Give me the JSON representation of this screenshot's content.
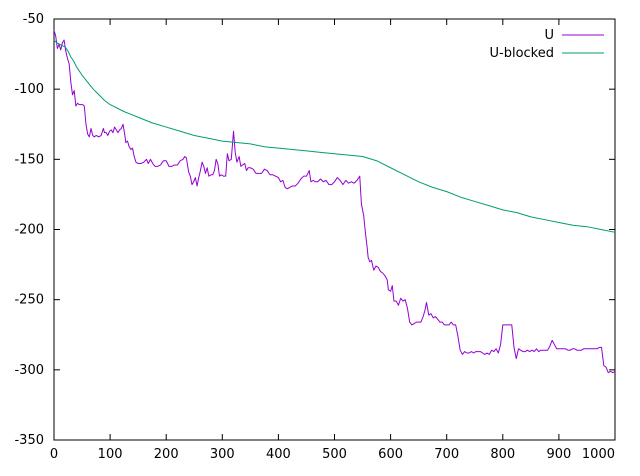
{
  "chart_data": {
    "type": "line",
    "title": "",
    "xlabel": "",
    "ylabel": "",
    "xlim": [
      0,
      1000
    ],
    "ylim": [
      -350,
      -50
    ],
    "x_ticks": [
      0,
      100,
      200,
      300,
      400,
      500,
      600,
      700,
      800,
      900,
      1000
    ],
    "y_ticks": [
      -50,
      -100,
      -150,
      -200,
      -250,
      -300,
      -350
    ],
    "grid": false,
    "legend_position": "top-right",
    "series": [
      {
        "name": "U",
        "color": "#9400d3",
        "points": [
          [
            0,
            -58
          ],
          [
            3,
            -62
          ],
          [
            6,
            -71
          ],
          [
            9,
            -68
          ],
          [
            12,
            -72
          ],
          [
            15,
            -67
          ],
          [
            18,
            -65
          ],
          [
            21,
            -73
          ],
          [
            24,
            -78
          ],
          [
            27,
            -82
          ],
          [
            30,
            -95
          ],
          [
            33,
            -104
          ],
          [
            36,
            -101
          ],
          [
            39,
            -112
          ],
          [
            42,
            -110
          ],
          [
            45,
            -111
          ],
          [
            48,
            -111
          ],
          [
            51,
            -111
          ],
          [
            54,
            -112
          ],
          [
            57,
            -125
          ],
          [
            60,
            -132
          ],
          [
            63,
            -134
          ],
          [
            66,
            -128
          ],
          [
            69,
            -133
          ],
          [
            72,
            -134
          ],
          [
            75,
            -133
          ],
          [
            80,
            -134
          ],
          [
            84,
            -133
          ],
          [
            88,
            -128
          ],
          [
            90,
            -131
          ],
          [
            93,
            -131
          ],
          [
            96,
            -133
          ],
          [
            99,
            -130
          ],
          [
            102,
            -129
          ],
          [
            105,
            -131
          ],
          [
            108,
            -127
          ],
          [
            111,
            -129
          ],
          [
            114,
            -131
          ],
          [
            117,
            -129
          ],
          [
            120,
            -128
          ],
          [
            123,
            -125
          ],
          [
            126,
            -132
          ],
          [
            128,
            -138
          ],
          [
            131,
            -137
          ],
          [
            134,
            -141
          ],
          [
            137,
            -143
          ],
          [
            140,
            -142
          ],
          [
            143,
            -148
          ],
          [
            146,
            -152
          ],
          [
            150,
            -153
          ],
          [
            155,
            -153
          ],
          [
            160,
            -152
          ],
          [
            165,
            -150
          ],
          [
            168,
            -153
          ],
          [
            172,
            -150
          ],
          [
            176,
            -153
          ],
          [
            180,
            -155
          ],
          [
            185,
            -155
          ],
          [
            190,
            -154
          ],
          [
            195,
            -151
          ],
          [
            200,
            -151
          ],
          [
            205,
            -155
          ],
          [
            210,
            -155
          ],
          [
            215,
            -154
          ],
          [
            220,
            -154
          ],
          [
            225,
            -151
          ],
          [
            230,
            -150
          ],
          [
            233,
            -148
          ],
          [
            236,
            -149
          ],
          [
            240,
            -159
          ],
          [
            243,
            -162
          ],
          [
            246,
            -168
          ],
          [
            249,
            -166
          ],
          [
            252,
            -163
          ],
          [
            255,
            -169
          ],
          [
            258,
            -163
          ],
          [
            261,
            -158
          ],
          [
            264,
            -152
          ],
          [
            267,
            -155
          ],
          [
            270,
            -160
          ],
          [
            273,
            -156
          ],
          [
            276,
            -162
          ],
          [
            280,
            -161
          ],
          [
            283,
            -161
          ],
          [
            286,
            -158
          ],
          [
            289,
            -150
          ],
          [
            292,
            -153
          ],
          [
            295,
            -162
          ],
          [
            298,
            -161
          ],
          [
            302,
            -162
          ],
          [
            306,
            -162
          ],
          [
            309,
            -146
          ],
          [
            312,
            -151
          ],
          [
            316,
            -150
          ],
          [
            320,
            -130
          ],
          [
            323,
            -145
          ],
          [
            326,
            -152
          ],
          [
            330,
            -148
          ],
          [
            333,
            -155
          ],
          [
            336,
            -154
          ],
          [
            340,
            -153
          ],
          [
            343,
            -158
          ],
          [
            346,
            -156
          ],
          [
            350,
            -156
          ],
          [
            355,
            -157
          ],
          [
            360,
            -160
          ],
          [
            365,
            -160
          ],
          [
            370,
            -160
          ],
          [
            375,
            -157
          ],
          [
            380,
            -158
          ],
          [
            385,
            -161
          ],
          [
            390,
            -161
          ],
          [
            395,
            -162
          ],
          [
            400,
            -163
          ],
          [
            404,
            -166
          ],
          [
            408,
            -165
          ],
          [
            412,
            -170
          ],
          [
            416,
            -171
          ],
          [
            420,
            -170
          ],
          [
            425,
            -169
          ],
          [
            430,
            -169
          ],
          [
            435,
            -167
          ],
          [
            440,
            -164
          ],
          [
            445,
            -162
          ],
          [
            450,
            -162
          ],
          [
            455,
            -158
          ],
          [
            458,
            -166
          ],
          [
            462,
            -165
          ],
          [
            466,
            -166
          ],
          [
            470,
            -166
          ],
          [
            475,
            -164
          ],
          [
            480,
            -166
          ],
          [
            485,
            -165
          ],
          [
            490,
            -168
          ],
          [
            495,
            -168
          ],
          [
            500,
            -166
          ],
          [
            505,
            -163
          ],
          [
            510,
            -165
          ],
          [
            515,
            -168
          ],
          [
            520,
            -165
          ],
          [
            525,
            -167
          ],
          [
            530,
            -166
          ],
          [
            535,
            -167
          ],
          [
            540,
            -165
          ],
          [
            545,
            -162
          ],
          [
            548,
            -182
          ],
          [
            552,
            -190
          ],
          [
            555,
            -202
          ],
          [
            558,
            -212
          ],
          [
            560,
            -220
          ],
          [
            563,
            -223
          ],
          [
            566,
            -222
          ],
          [
            570,
            -229
          ],
          [
            574,
            -226
          ],
          [
            578,
            -227
          ],
          [
            582,
            -230
          ],
          [
            586,
            -231
          ],
          [
            590,
            -233
          ],
          [
            594,
            -236
          ],
          [
            596,
            -243
          ],
          [
            600,
            -244
          ],
          [
            603,
            -240
          ],
          [
            606,
            -251
          ],
          [
            610,
            -251
          ],
          [
            614,
            -254
          ],
          [
            618,
            -249
          ],
          [
            622,
            -251
          ],
          [
            626,
            -250
          ],
          [
            630,
            -256
          ],
          [
            634,
            -266
          ],
          [
            638,
            -268
          ],
          [
            642,
            -267
          ],
          [
            646,
            -266
          ],
          [
            650,
            -266
          ],
          [
            654,
            -266
          ],
          [
            658,
            -262
          ],
          [
            661,
            -258
          ],
          [
            664,
            -252
          ],
          [
            668,
            -261
          ],
          [
            672,
            -260
          ],
          [
            676,
            -263
          ],
          [
            680,
            -262
          ],
          [
            684,
            -264
          ],
          [
            688,
            -266
          ],
          [
            692,
            -266
          ],
          [
            696,
            -268
          ],
          [
            700,
            -268
          ],
          [
            704,
            -268
          ],
          [
            708,
            -266
          ],
          [
            712,
            -268
          ],
          [
            716,
            -268
          ],
          [
            720,
            -276
          ],
          [
            724,
            -286
          ],
          [
            728,
            -289
          ],
          [
            732,
            -287
          ],
          [
            736,
            -288
          ],
          [
            740,
            -288
          ],
          [
            744,
            -287
          ],
          [
            748,
            -288
          ],
          [
            752,
            -287
          ],
          [
            756,
            -287
          ],
          [
            760,
            -287
          ],
          [
            764,
            -288
          ],
          [
            768,
            -289
          ],
          [
            772,
            -288
          ],
          [
            776,
            -289
          ],
          [
            780,
            -286
          ],
          [
            784,
            -287
          ],
          [
            788,
            -285
          ],
          [
            792,
            -288
          ],
          [
            796,
            -282
          ],
          [
            800,
            -268
          ],
          [
            804,
            -268
          ],
          [
            808,
            -268
          ],
          [
            812,
            -268
          ],
          [
            816,
            -268
          ],
          [
            820,
            -284
          ],
          [
            824,
            -292
          ],
          [
            828,
            -285
          ],
          [
            832,
            -286
          ],
          [
            836,
            -287
          ],
          [
            840,
            -287
          ],
          [
            844,
            -286
          ],
          [
            848,
            -287
          ],
          [
            852,
            -286
          ],
          [
            856,
            -287
          ],
          [
            860,
            -285
          ],
          [
            864,
            -287
          ],
          [
            868,
            -286
          ],
          [
            872,
            -286
          ],
          [
            876,
            -286
          ],
          [
            880,
            -286
          ],
          [
            884,
            -283
          ],
          [
            888,
            -279
          ],
          [
            892,
            -282
          ],
          [
            896,
            -285
          ],
          [
            900,
            -285
          ],
          [
            904,
            -285
          ],
          [
            908,
            -285
          ],
          [
            912,
            -285
          ],
          [
            916,
            -286
          ],
          [
            920,
            -286
          ],
          [
            924,
            -285
          ],
          [
            928,
            -285
          ],
          [
            932,
            -286
          ],
          [
            936,
            -286
          ],
          [
            940,
            -286
          ],
          [
            944,
            -285
          ],
          [
            948,
            -285
          ],
          [
            952,
            -285
          ],
          [
            956,
            -285
          ],
          [
            960,
            -285
          ],
          [
            964,
            -285
          ],
          [
            968,
            -285
          ],
          [
            972,
            -284
          ],
          [
            976,
            -284
          ],
          [
            980,
            -297
          ],
          [
            984,
            -298
          ],
          [
            988,
            -302
          ],
          [
            992,
            -301
          ],
          [
            996,
            -302
          ],
          [
            1000,
            -301
          ]
        ]
      },
      {
        "name": "U-blocked",
        "color": "#009e73",
        "points": [
          [
            0,
            -65
          ],
          [
            5,
            -67
          ],
          [
            10,
            -68
          ],
          [
            15,
            -69
          ],
          [
            20,
            -70
          ],
          [
            25,
            -73
          ],
          [
            30,
            -77
          ],
          [
            35,
            -80
          ],
          [
            40,
            -84
          ],
          [
            45,
            -87
          ],
          [
            50,
            -90
          ],
          [
            60,
            -95
          ],
          [
            70,
            -100
          ],
          [
            80,
            -104
          ],
          [
            90,
            -108
          ],
          [
            100,
            -111
          ],
          [
            125,
            -116
          ],
          [
            150,
            -120
          ],
          [
            175,
            -124
          ],
          [
            200,
            -127
          ],
          [
            225,
            -130
          ],
          [
            250,
            -133
          ],
          [
            275,
            -135
          ],
          [
            300,
            -137
          ],
          [
            325,
            -138
          ],
          [
            350,
            -139
          ],
          [
            375,
            -141
          ],
          [
            400,
            -142
          ],
          [
            425,
            -143
          ],
          [
            450,
            -144
          ],
          [
            475,
            -145
          ],
          [
            500,
            -146
          ],
          [
            525,
            -147
          ],
          [
            550,
            -148
          ],
          [
            575,
            -151
          ],
          [
            600,
            -156
          ],
          [
            625,
            -161
          ],
          [
            650,
            -166
          ],
          [
            675,
            -170
          ],
          [
            700,
            -173
          ],
          [
            725,
            -177
          ],
          [
            750,
            -180
          ],
          [
            775,
            -183
          ],
          [
            800,
            -186
          ],
          [
            825,
            -188
          ],
          [
            850,
            -191
          ],
          [
            875,
            -193
          ],
          [
            900,
            -195
          ],
          [
            925,
            -197
          ],
          [
            950,
            -198
          ],
          [
            975,
            -200
          ],
          [
            1000,
            -202
          ]
        ]
      }
    ]
  }
}
